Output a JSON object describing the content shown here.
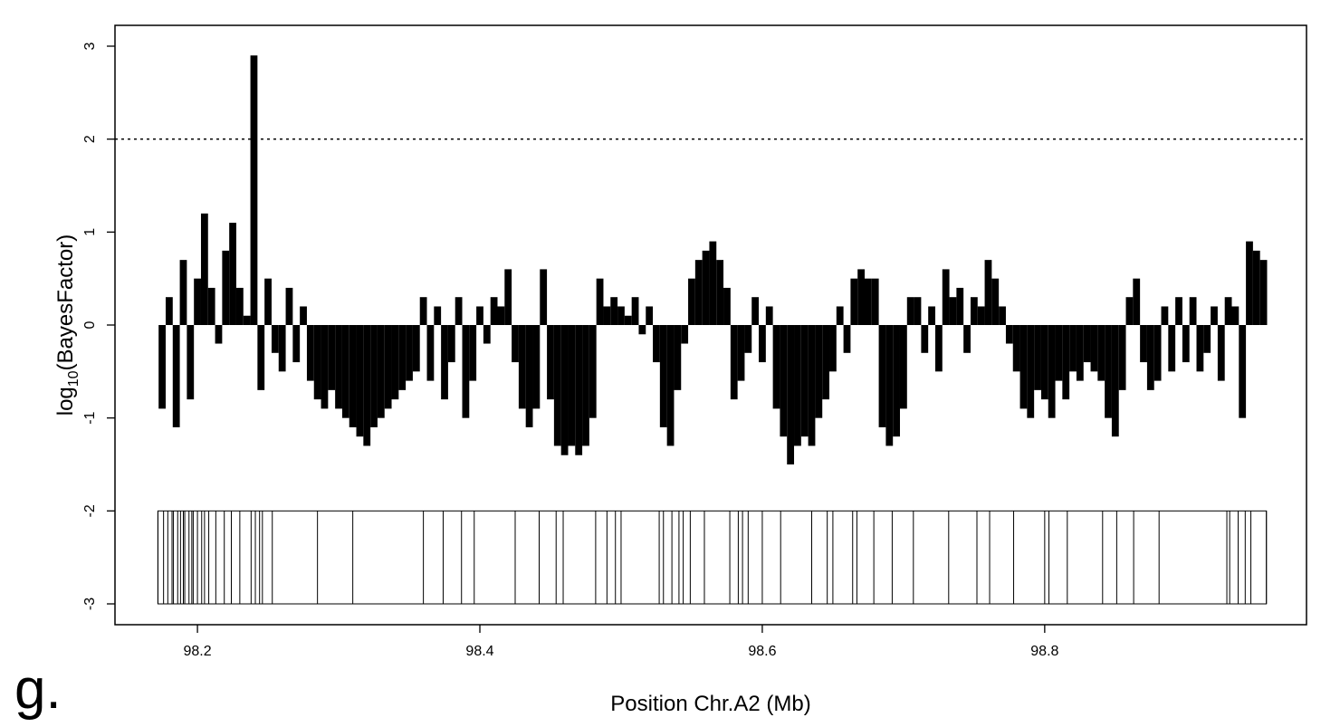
{
  "chart_data": {
    "type": "bar",
    "xlabel": "Position Chr.A2 (Mb)",
    "ylabel": {
      "base": "log",
      "subscript": "10",
      "rest": "(BayesFactor)"
    },
    "panel_label": "g.",
    "color": "#000000",
    "xlim": [
      98.1416,
      98.9854
    ],
    "ylim": [
      -3.224,
      3.224
    ],
    "xticks": [
      98.2,
      98.4,
      98.6,
      98.8
    ],
    "yticks": [
      -3,
      -2,
      -1,
      0,
      1,
      2,
      3
    ],
    "threshold": 2,
    "x": [
      98.175,
      98.18,
      98.185,
      98.19,
      98.195,
      98.2,
      98.205,
      98.21,
      98.215,
      98.22,
      98.225,
      98.23,
      98.235,
      98.24,
      98.245,
      98.25,
      98.255,
      98.26,
      98.265,
      98.27,
      98.275,
      98.28,
      98.285,
      98.29,
      98.295,
      98.3,
      98.305,
      98.31,
      98.315,
      98.32,
      98.325,
      98.33,
      98.335,
      98.34,
      98.345,
      98.35,
      98.355,
      98.36,
      98.365,
      98.37,
      98.375,
      98.38,
      98.385,
      98.39,
      98.395,
      98.4,
      98.405,
      98.41,
      98.415,
      98.42,
      98.425,
      98.43,
      98.435,
      98.44,
      98.445,
      98.45,
      98.455,
      98.46,
      98.465,
      98.47,
      98.475,
      98.48,
      98.485,
      98.49,
      98.495,
      98.5,
      98.505,
      98.51,
      98.515,
      98.52,
      98.525,
      98.53,
      98.535,
      98.54,
      98.545,
      98.55,
      98.555,
      98.56,
      98.565,
      98.57,
      98.575,
      98.58,
      98.585,
      98.59,
      98.595,
      98.6,
      98.605,
      98.61,
      98.615,
      98.62,
      98.625,
      98.63,
      98.635,
      98.64,
      98.645,
      98.65,
      98.655,
      98.66,
      98.665,
      98.67,
      98.675,
      98.68,
      98.685,
      98.69,
      98.695,
      98.7,
      98.705,
      98.71,
      98.715,
      98.72,
      98.725,
      98.73,
      98.735,
      98.74,
      98.745,
      98.75,
      98.755,
      98.76,
      98.765,
      98.77,
      98.775,
      98.78,
      98.785,
      98.79,
      98.795,
      98.8,
      98.805,
      98.81,
      98.815,
      98.82,
      98.825,
      98.83,
      98.835,
      98.84,
      98.845,
      98.85,
      98.855,
      98.86,
      98.865,
      98.87,
      98.875,
      98.88,
      98.885,
      98.89,
      98.895,
      98.9,
      98.905,
      98.91,
      98.915,
      98.92,
      98.925,
      98.93,
      98.935,
      98.94,
      98.945,
      98.95,
      98.955
    ],
    "values": [
      -0.9,
      0.3,
      -1.1,
      0.7,
      -0.8,
      0.5,
      1.2,
      0.4,
      -0.2,
      0.8,
      1.1,
      0.4,
      0.1,
      2.9,
      -0.7,
      0.5,
      -0.3,
      -0.5,
      0.4,
      -0.4,
      0.2,
      -0.6,
      -0.8,
      -0.9,
      -0.7,
      -0.9,
      -1.0,
      -1.1,
      -1.2,
      -1.3,
      -1.1,
      -1.0,
      -0.9,
      -0.8,
      -0.7,
      -0.6,
      -0.5,
      0.3,
      -0.6,
      0.2,
      -0.8,
      -0.4,
      0.3,
      -1.0,
      -0.6,
      0.2,
      -0.2,
      0.3,
      0.2,
      0.6,
      -0.4,
      -0.9,
      -1.1,
      -0.9,
      0.6,
      -0.8,
      -1.3,
      -1.4,
      -1.3,
      -1.4,
      -1.3,
      -1.0,
      0.5,
      0.2,
      0.3,
      0.2,
      0.1,
      0.3,
      -0.1,
      0.2,
      -0.4,
      -1.1,
      -1.3,
      -0.7,
      -0.2,
      0.5,
      0.7,
      0.8,
      0.9,
      0.7,
      0.4,
      -0.8,
      -0.6,
      -0.3,
      0.3,
      -0.4,
      0.2,
      -0.9,
      -1.2,
      -1.5,
      -1.3,
      -1.2,
      -1.3,
      -1.0,
      -0.8,
      -0.5,
      0.2,
      -0.3,
      0.5,
      0.6,
      0.5,
      0.5,
      -1.1,
      -1.3,
      -1.2,
      -0.9,
      0.3,
      0.3,
      -0.3,
      0.2,
      -0.5,
      0.6,
      0.3,
      0.4,
      -0.3,
      0.3,
      0.2,
      0.7,
      0.5,
      0.2,
      -0.2,
      -0.5,
      -0.9,
      -1.0,
      -0.7,
      -0.8,
      -1.0,
      -0.6,
      -0.8,
      -0.5,
      -0.6,
      -0.4,
      -0.5,
      -0.6,
      -1.0,
      -1.2,
      -0.7,
      0.3,
      0.5,
      -0.4,
      -0.7,
      -0.6,
      0.2,
      -0.5,
      0.3,
      -0.4,
      0.3,
      -0.5,
      -0.3,
      0.2,
      -0.6,
      0.3,
      0.2,
      -1.0,
      0.9,
      0.8,
      0.7
    ],
    "gene_track": {
      "y": [
        -3,
        -2
      ],
      "boundaries": [
        98.172,
        98.176,
        98.179,
        98.182,
        98.183,
        98.186,
        98.188,
        98.19,
        98.191,
        98.194,
        98.196,
        98.197,
        98.2,
        98.203,
        98.205,
        98.208,
        98.213,
        98.219,
        98.224,
        98.23,
        98.238,
        98.241,
        98.244,
        98.246,
        98.253,
        98.285,
        98.31,
        98.36,
        98.374,
        98.387,
        98.396,
        98.425,
        98.442,
        98.454,
        98.459,
        98.482,
        98.49,
        98.496,
        98.5,
        98.527,
        98.53,
        98.536,
        98.541,
        98.544,
        98.549,
        98.559,
        98.577,
        98.583,
        98.586,
        98.59,
        98.6,
        98.613,
        98.635,
        98.646,
        98.65,
        98.664,
        98.667,
        98.679,
        98.692,
        98.707,
        98.732,
        98.752,
        98.761,
        98.778,
        98.8,
        98.803,
        98.816,
        98.841,
        98.851,
        98.863,
        98.881,
        98.929,
        98.931,
        98.937,
        98.942,
        98.946,
        98.957
      ]
    }
  }
}
